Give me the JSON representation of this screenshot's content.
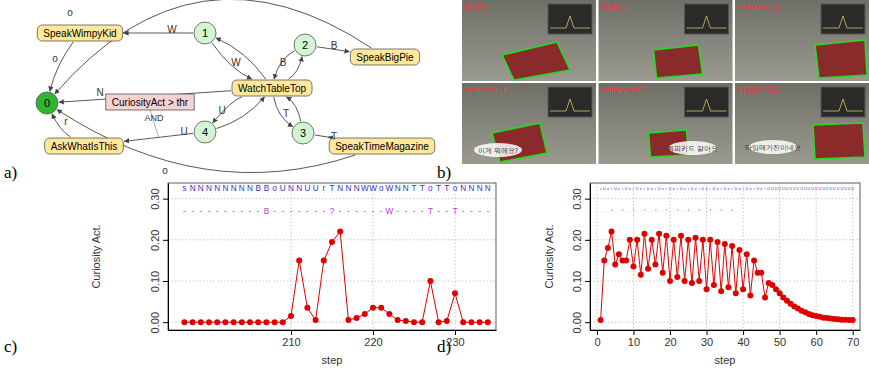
{
  "panel_labels": [
    "a)",
    "b)",
    "c)",
    "d)"
  ],
  "diagram": {
    "nodes": [
      {
        "label": "0",
        "kind": "start"
      },
      {
        "label": "1",
        "kind": "state"
      },
      {
        "label": "2",
        "kind": "state"
      },
      {
        "label": "3",
        "kind": "state"
      },
      {
        "label": "4",
        "kind": "state"
      },
      {
        "label": "WatchTableTop",
        "kind": "action"
      },
      {
        "label": "SpeakWimpyKid",
        "kind": "action"
      },
      {
        "label": "SpeakBigPie",
        "kind": "action"
      },
      {
        "label": "AskWhatIsThis",
        "kind": "action"
      },
      {
        "label": "SpeakTimeMagazine",
        "kind": "action"
      },
      {
        "label": "CuriosityAct > thr",
        "kind": "condition"
      }
    ],
    "edges": [
      {
        "from": "WatchTableTop",
        "to": "1",
        "label": "W"
      },
      {
        "from": "1",
        "to": "WatchTableTop"
      },
      {
        "from": "1",
        "to": "SpeakWimpyKid",
        "label": "W"
      },
      {
        "from": "SpeakWimpyKid",
        "to": "0",
        "label": "o"
      },
      {
        "from": "WatchTableTop",
        "to": "2",
        "label": "B"
      },
      {
        "from": "2",
        "to": "WatchTableTop"
      },
      {
        "from": "2",
        "to": "SpeakBigPie",
        "label": "B"
      },
      {
        "from": "SpeakBigPie",
        "to": "0",
        "label": "o"
      },
      {
        "from": "WatchTableTop",
        "to": "0",
        "label": "N"
      },
      {
        "from": "WatchTableTop",
        "to": "4",
        "label": "U"
      },
      {
        "from": "4",
        "to": "WatchTableTop"
      },
      {
        "from": "4",
        "to": "AskWhatIsThis",
        "label": "U"
      },
      {
        "from": "AskWhatIsThis",
        "to": "0",
        "label": "r"
      },
      {
        "from": "WatchTableTop",
        "to": "3",
        "label": "T"
      },
      {
        "from": "3",
        "to": "WatchTableTop"
      },
      {
        "from": "3",
        "to": "SpeakTimeMagazine",
        "label": "T"
      },
      {
        "from": "SpeakTimeMagazine",
        "to": "0",
        "label": "o"
      }
    ],
    "condition_joiner": "AND"
  },
  "photos": {
    "frames": [
      {
        "label": "BigPie"
      },
      {
        "label": "BigPie"
      },
      {
        "label": "unknown_1"
      },
      {
        "label": "unknown_1",
        "bubble": "이게 뭐에요?"
      },
      {
        "label": "WimpyKid01",
        "bubble": "윔피키드 같아요"
      },
      {
        "label": "타임매거진",
        "bubble": "타임매거진이네요"
      }
    ]
  },
  "chart_data": [
    {
      "type": "line",
      "marker": "circle",
      "color": "#e00000",
      "x_label": "step",
      "y_label": "Curiosity Act.",
      "x": [
        197,
        198,
        199,
        200,
        201,
        202,
        203,
        204,
        205,
        206,
        207,
        208,
        209,
        210,
        211,
        212,
        213,
        214,
        215,
        216,
        217,
        218,
        219,
        220,
        221,
        222,
        223,
        224,
        225,
        226,
        227,
        228,
        229,
        230,
        231,
        232,
        233,
        234
      ],
      "values": [
        0,
        0,
        0,
        0,
        0,
        0,
        0,
        0,
        0,
        0,
        0,
        0,
        0,
        0.015,
        0.15,
        0.035,
        0.005,
        0.15,
        0.195,
        0.22,
        0.005,
        0.01,
        0.02,
        0.035,
        0.035,
        0.02,
        0.005,
        0.003,
        0,
        0,
        0.1,
        0,
        0.003,
        0.07,
        0,
        0,
        0,
        0
      ],
      "xlim": [
        195,
        235
      ],
      "ylim": [
        -0.019,
        0.338
      ],
      "xticks": [
        210,
        220,
        230
      ],
      "yticks": [
        {
          "value": 0,
          "label": "0.00"
        },
        {
          "value": 0.1,
          "label": "0.10"
        },
        {
          "value": 0.2,
          "label": "0.20"
        },
        {
          "value": 0.3,
          "label": "0.30"
        }
      ],
      "grid": true,
      "annotations": [
        {
          "color": "#3333cc",
          "y": 0.325,
          "x": [
            197,
            198,
            199,
            200,
            201,
            202,
            203,
            204,
            205,
            206,
            207,
            208,
            209,
            210,
            211,
            212,
            213,
            214,
            215,
            216,
            217,
            218,
            219,
            220,
            221,
            222,
            223,
            224,
            225,
            226,
            227,
            228,
            229,
            230,
            231,
            232,
            233,
            234
          ],
          "texts": [
            "s",
            "N",
            "N",
            "N",
            "N",
            "N",
            "N",
            "N",
            "N",
            "B",
            "B",
            "o",
            "U",
            "N",
            "N",
            "U",
            "U",
            "r",
            "T",
            "N",
            "N",
            "N",
            "W",
            "W",
            "o",
            "W",
            "N",
            "N",
            "T",
            "T",
            "o",
            "T",
            "T",
            "o",
            "N",
            "N",
            "N",
            "N"
          ]
        },
        {
          "color": "#b040d8",
          "y": 0.27,
          "x": [
            197,
            198,
            199,
            200,
            201,
            202,
            203,
            204,
            205,
            206,
            207,
            208,
            209,
            210,
            211,
            212,
            213,
            214,
            215,
            216,
            217,
            218,
            219,
            220,
            221,
            222,
            223,
            224,
            225,
            226,
            227,
            228,
            229,
            230,
            231,
            232,
            233,
            234
          ],
          "texts": [
            "-",
            "-",
            "-",
            "-",
            "-",
            "-",
            "-",
            "-",
            "-",
            "-",
            "B",
            "-",
            "-",
            "-",
            "-",
            "-",
            "-",
            "-",
            "?",
            "-",
            "-",
            "-",
            "-",
            "-",
            "-",
            "W",
            "-",
            "-",
            "-",
            "-",
            "T",
            "-",
            "-",
            "T",
            "-",
            "-",
            "-",
            "-"
          ]
        }
      ]
    },
    {
      "type": "line",
      "marker": "circle",
      "color": "#e00000",
      "x_label": "step",
      "y_label": "Curiosity Act.",
      "x": [
        1,
        2,
        3,
        4,
        5,
        6,
        7,
        8,
        9,
        10,
        11,
        12,
        13,
        14,
        15,
        16,
        17,
        18,
        19,
        20,
        21,
        22,
        23,
        24,
        25,
        26,
        27,
        28,
        29,
        30,
        31,
        32,
        33,
        34,
        35,
        36,
        37,
        38,
        39,
        40,
        41,
        42,
        43,
        44,
        45,
        46,
        47,
        48,
        49,
        50,
        51,
        52,
        53,
        54,
        55,
        56,
        57,
        58,
        59,
        60,
        61,
        62,
        63,
        64,
        65,
        66,
        67,
        68,
        69,
        70
      ],
      "values": [
        0.005,
        0.15,
        0.18,
        0.22,
        0.14,
        0.165,
        0.15,
        0.15,
        0.2,
        0.135,
        0.2,
        0.115,
        0.215,
        0.13,
        0.2,
        0.14,
        0.215,
        0.12,
        0.21,
        0.1,
        0.2,
        0.11,
        0.21,
        0.1,
        0.2,
        0.095,
        0.205,
        0.1,
        0.2,
        0.08,
        0.2,
        0.09,
        0.195,
        0.075,
        0.19,
        0.085,
        0.185,
        0.07,
        0.175,
        0.08,
        0.165,
        0.065,
        0.15,
        0.12,
        0.12,
        0.06,
        0.095,
        0.09,
        0.08,
        0.07,
        0.06,
        0.052,
        0.045,
        0.038,
        0.033,
        0.028,
        0.024,
        0.02,
        0.017,
        0.015,
        0.013,
        0.011,
        0.01,
        0.009,
        0.008,
        0.007,
        0.006,
        0.006,
        0.005,
        0.005
      ],
      "xlim": [
        -1.9,
        72
      ],
      "ylim": [
        -0.019,
        0.338
      ],
      "xticks": [
        0,
        10,
        20,
        30,
        40,
        50,
        60,
        70
      ],
      "yticks": [
        {
          "value": 0,
          "label": "0.00"
        },
        {
          "value": 0.1,
          "label": "0.10"
        },
        {
          "value": 0.2,
          "label": "0.20"
        },
        {
          "value": 0.3,
          "label": "0.30"
        }
      ],
      "grid": true,
      "annotations": [
        {
          "color": "#3333cc",
          "y": 0.325,
          "x": [
            1,
            2,
            3,
            4,
            5,
            6,
            7,
            8,
            9,
            10,
            11,
            12,
            13,
            14,
            15,
            16,
            17,
            18,
            19,
            20,
            21,
            22,
            23,
            24,
            25,
            26,
            27,
            28,
            29,
            30,
            31,
            32,
            33,
            34,
            35,
            36,
            37,
            38,
            39,
            40,
            41,
            42,
            43,
            44,
            45,
            46,
            47,
            48,
            49,
            50,
            51,
            52,
            53,
            54,
            55,
            56,
            57,
            58,
            59,
            60,
            61,
            62,
            63,
            64,
            65,
            66,
            67,
            68,
            69,
            70
          ],
          "texts": [
            "s",
            "U",
            "o",
            "r",
            "U",
            "o",
            "r",
            "U",
            "o",
            "r",
            "U",
            "o",
            "r",
            "U",
            "o",
            "r",
            "U",
            "o",
            "r",
            "U",
            "o",
            "r",
            "U",
            "o",
            "r",
            "U",
            "o",
            "r",
            "U",
            "o",
            "r",
            "U",
            "o",
            "r",
            "U",
            "o",
            "r",
            "U",
            "o",
            "r",
            "U",
            "o",
            "r",
            "U",
            "o",
            "r",
            "U",
            "U",
            "U",
            "U",
            "U",
            "U",
            "U",
            "U",
            "U",
            "U",
            "U",
            "U",
            "U",
            "U",
            "U",
            "U",
            "U",
            "U",
            "U",
            "U",
            "U",
            "U",
            "U",
            "U"
          ]
        },
        {
          "color": "#b040d8",
          "y": 0.27,
          "x": [
            1,
            2,
            3,
            4,
            5,
            6,
            7,
            8,
            9,
            10,
            11,
            12,
            13,
            14,
            15,
            16,
            17,
            18,
            19,
            20,
            21,
            22,
            23,
            24,
            25,
            26,
            27,
            28,
            29,
            30,
            31,
            32,
            33,
            34,
            35,
            36,
            37,
            38
          ],
          "texts": [
            "-",
            "-",
            "-",
            "?",
            "-",
            "-",
            "?",
            "-",
            "-",
            "?",
            "-",
            "-",
            "?",
            "-",
            "-",
            "?",
            "-",
            "-",
            "?",
            "-",
            "-",
            "?",
            "-",
            "-",
            "?",
            "-",
            "-",
            "?",
            "-",
            "-",
            "?",
            "-",
            "-",
            "?",
            "-",
            "-",
            "?",
            "-"
          ]
        }
      ]
    }
  ]
}
